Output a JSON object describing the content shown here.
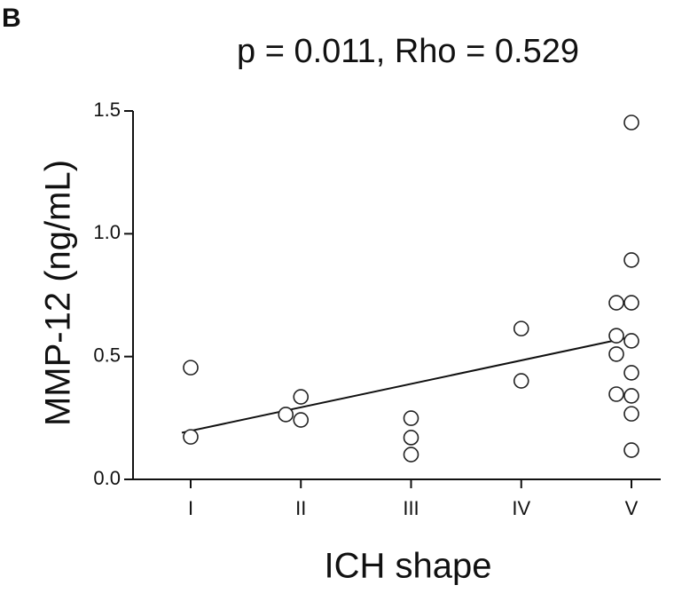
{
  "panel_label": "B",
  "chart_data": {
    "type": "scatter",
    "title": "p = 0.011, Rho = 0.529",
    "x_label": "ICH shape",
    "y_label": "MMP-12 (ng/mL)",
    "categories": [
      "I",
      "II",
      "III",
      "IV",
      "V"
    ],
    "ylim": [
      0,
      1.5
    ],
    "yticks": [
      {
        "value": 0,
        "label": "0.0"
      },
      0.5,
      {
        "value": 1,
        "label": "1.0"
      },
      {
        "value": 1.5,
        "label": "1.5"
      }
    ],
    "marker_color": "#222222",
    "points": {
      "x": [
        "I",
        "I",
        "II",
        "II",
        "II",
        "III",
        "III",
        "III",
        "IV",
        "IV",
        "V",
        "V",
        "V",
        "V",
        "V",
        "V",
        "V",
        "V",
        "V",
        "V",
        "V",
        "V"
      ],
      "y": [
        0.455,
        0.173,
        0.336,
        0.242,
        0.264,
        0.249,
        0.17,
        0.101,
        0.614,
        0.401,
        1.453,
        0.893,
        0.719,
        0.719,
        0.564,
        0.585,
        0.51,
        0.434,
        0.34,
        0.347,
        0.267,
        0.119
      ]
    },
    "trend_line": {
      "x": [
        "I",
        "V"
      ],
      "y": [
        0.19,
        0.58
      ]
    }
  }
}
